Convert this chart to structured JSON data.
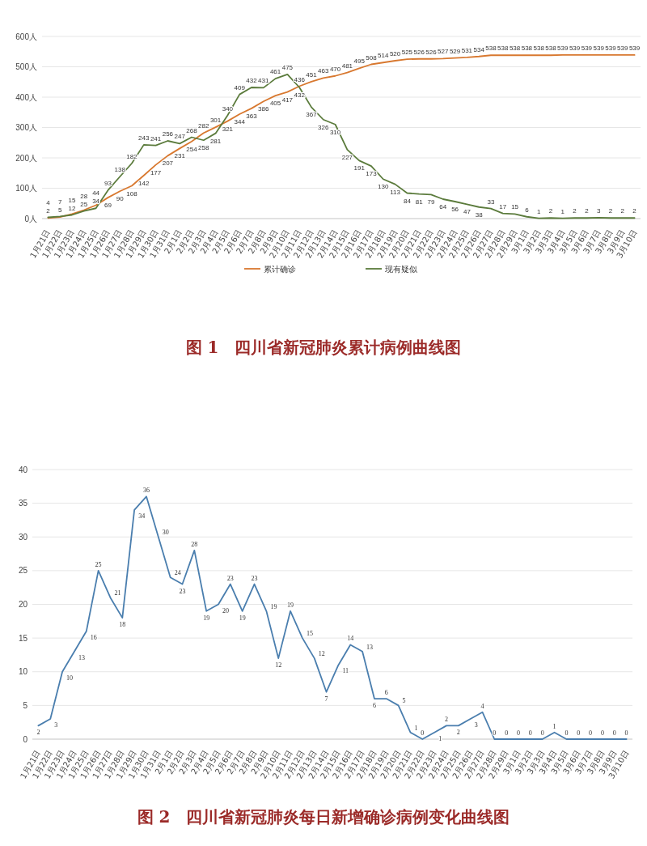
{
  "chart_data": [
    {
      "type": "line",
      "title": "图 1　四川省新冠肺炎累计病例曲线图",
      "categories": [
        "1月21日",
        "1月22日",
        "1月23日",
        "1月24日",
        "1月25日",
        "1月26日",
        "1月27日",
        "1月28日",
        "1月29日",
        "1月30日",
        "1月31日",
        "2月1日",
        "2月2日",
        "2月3日",
        "2月4日",
        "2月5日",
        "2月6日",
        "2月7日",
        "2月8日",
        "2月9日",
        "2月10日",
        "2月11日",
        "2月12日",
        "2月13日",
        "2月14日",
        "2月15日",
        "2月16日",
        "2月17日",
        "2月18日",
        "2月19日",
        "2月20日",
        "2月21日",
        "2月22日",
        "2月23日",
        "2月24日",
        "2月25日",
        "2月26日",
        "2月27日",
        "2月28日",
        "2月29日",
        "3月1日",
        "3月2日",
        "3月3日",
        "3月4日",
        "3月5日",
        "3月6日",
        "3月7日",
        "3月8日",
        "3月9日",
        "3月10日"
      ],
      "series": [
        {
          "name": "累计确诊",
          "color": "#d8782f",
          "values": [
            2,
            5,
            15,
            28,
            44,
            69,
            90,
            108,
            142,
            177,
            207,
            231,
            254,
            282,
            301,
            321,
            344,
            363,
            386,
            405,
            417,
            436,
            451,
            463,
            470,
            481,
            495,
            508,
            514,
            520,
            525,
            526,
            526,
            527,
            529,
            531,
            534,
            538,
            538,
            538,
            538,
            538,
            538,
            539,
            539,
            539,
            539,
            539,
            539,
            539
          ]
        },
        {
          "name": "现有疑似",
          "color": "#5b7b3c",
          "values": [
            4,
            7,
            12,
            25,
            34,
            93,
            138,
            182,
            243,
            241,
            256,
            247,
            268,
            258,
            281,
            340,
            409,
            432,
            431,
            461,
            475,
            432,
            367,
            326,
            310,
            227,
            191,
            173,
            130,
            113,
            84,
            81,
            79,
            64,
            56,
            47,
            38,
            33,
            17,
            15,
            6,
            1,
            2,
            1,
            2,
            2,
            3,
            2,
            2,
            2
          ]
        }
      ],
      "ylim": [
        0,
        600
      ],
      "yticks": [
        {
          "value": 0,
          "label": "0人"
        },
        {
          "value": 100,
          "label": "100人"
        },
        {
          "value": 200,
          "label": "200人"
        },
        {
          "value": 300,
          "label": "300人"
        },
        {
          "value": 400,
          "label": "400人"
        },
        {
          "value": 500,
          "label": "500人"
        },
        {
          "value": 600,
          "label": "600人"
        }
      ],
      "grid": "y",
      "legend": "bottom",
      "data_labels": true
    },
    {
      "type": "line",
      "title": "图 2　四川省新冠肺炎每日新增确诊病例变化曲线图",
      "categories": [
        "1月21日",
        "1月22日",
        "1月23日",
        "1月24日",
        "1月25日",
        "1月26日",
        "1月27日",
        "1月28日",
        "1月29日",
        "1月30日",
        "1月31日",
        "2月1日",
        "2月2日",
        "2月3日",
        "2月4日",
        "2月5日",
        "2月6日",
        "2月7日",
        "2月8日",
        "2月9日",
        "2月10日",
        "2月11日",
        "2月12日",
        "2月13日",
        "2月14日",
        "2月15日",
        "2月16日",
        "2月17日",
        "2月18日",
        "2月19日",
        "2月20日",
        "2月21日",
        "2月22日",
        "2月23日",
        "2月24日",
        "2月25日",
        "2月26日",
        "2月27日",
        "2月28日",
        "2月29日",
        "3月1日",
        "3月2日",
        "3月3日",
        "3月4日",
        "3月5日",
        "3月6日",
        "3月7日",
        "3月8日",
        "3月9日",
        "3月10日"
      ],
      "series": [
        {
          "color": "#4a7eae",
          "values": [
            2,
            3,
            10,
            13,
            16,
            25,
            21,
            18,
            34,
            36,
            30,
            24,
            23,
            28,
            19,
            20,
            23,
            19,
            23,
            19,
            12,
            19,
            15,
            12,
            7,
            11,
            14,
            13,
            6,
            6,
            5,
            1,
            0,
            1,
            2,
            2,
            3,
            4,
            0,
            0,
            0,
            0,
            0,
            1,
            0,
            0,
            0,
            0,
            0,
            0
          ]
        }
      ],
      "ylim": [
        0,
        40
      ],
      "yticks": [
        0,
        5,
        10,
        15,
        20,
        25,
        30,
        35,
        40
      ],
      "grid": "y",
      "data_labels": true
    }
  ]
}
